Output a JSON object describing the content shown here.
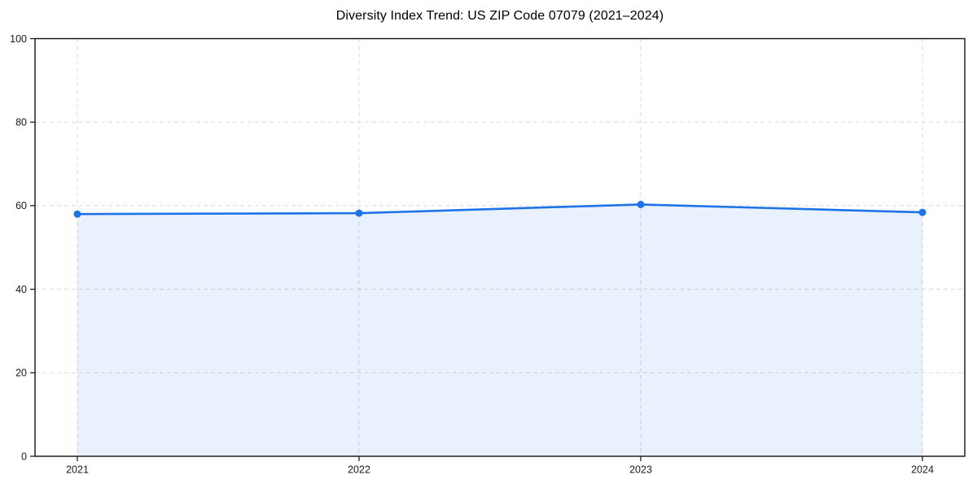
{
  "chart_data": {
    "type": "area",
    "title": "Diversity Index Trend: US ZIP Code 07079 (2021–2024)",
    "x": [
      "2021",
      "2022",
      "2023",
      "2024"
    ],
    "series": [
      {
        "name": "Diversity Index",
        "values": [
          58.0,
          58.2,
          60.3,
          58.4
        ]
      }
    ],
    "xlabel": "",
    "ylabel": "",
    "ylim": [
      0,
      100
    ],
    "yticks": [
      0,
      20,
      40,
      60,
      80,
      100
    ],
    "grid": "dashed",
    "legend": false,
    "colors": {
      "line": "#1e73e8",
      "marker": "#1e73e8",
      "fill": "#1e73e8",
      "fill_opacity": 0.1,
      "grid": "#d9d9d9",
      "axis": "#111111",
      "tick_label": "#1a1a1a",
      "title": "#000000",
      "background": "#ffffff"
    }
  }
}
